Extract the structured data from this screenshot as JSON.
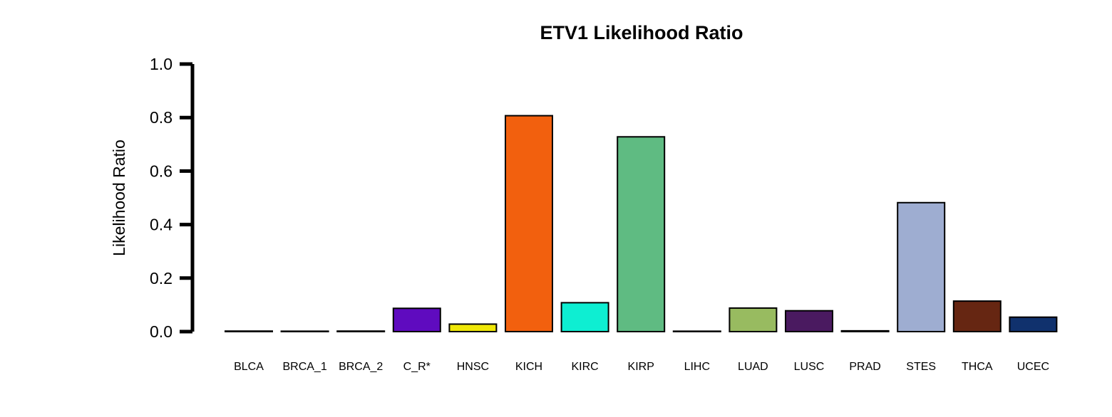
{
  "chart_data": {
    "type": "bar",
    "title": "ETV1 Likelihood Ratio",
    "xlabel": "",
    "ylabel": "Likelihood Ratio",
    "ylim": [
      0,
      1.0
    ],
    "yticks": [
      "0.0",
      "0.2",
      "0.4",
      "0.6",
      "0.8",
      "1.0"
    ],
    "categories": [
      "BLCA",
      "BRCA_1",
      "BRCA_2",
      "C_R*",
      "HNSC",
      "KICH",
      "KIRC",
      "KIRP",
      "LIHC",
      "LUAD",
      "LUSC",
      "PRAD",
      "STES",
      "THCA",
      "UCEC"
    ],
    "values": [
      0.002,
      0.001,
      0.002,
      0.087,
      0.028,
      0.807,
      0.108,
      0.728,
      0.001,
      0.088,
      0.078,
      0.003,
      0.482,
      0.114,
      0.054
    ],
    "colors": [
      "#000000",
      "#000000",
      "#000000",
      "#5F0BBF",
      "#EFE707",
      "#F2600E",
      "#0EEED2",
      "#5FBB82",
      "#000000",
      "#98BB60",
      "#4A1A60",
      "#000000",
      "#9EADD1",
      "#662612",
      "#10316D"
    ],
    "grid": false,
    "legend": "none"
  }
}
